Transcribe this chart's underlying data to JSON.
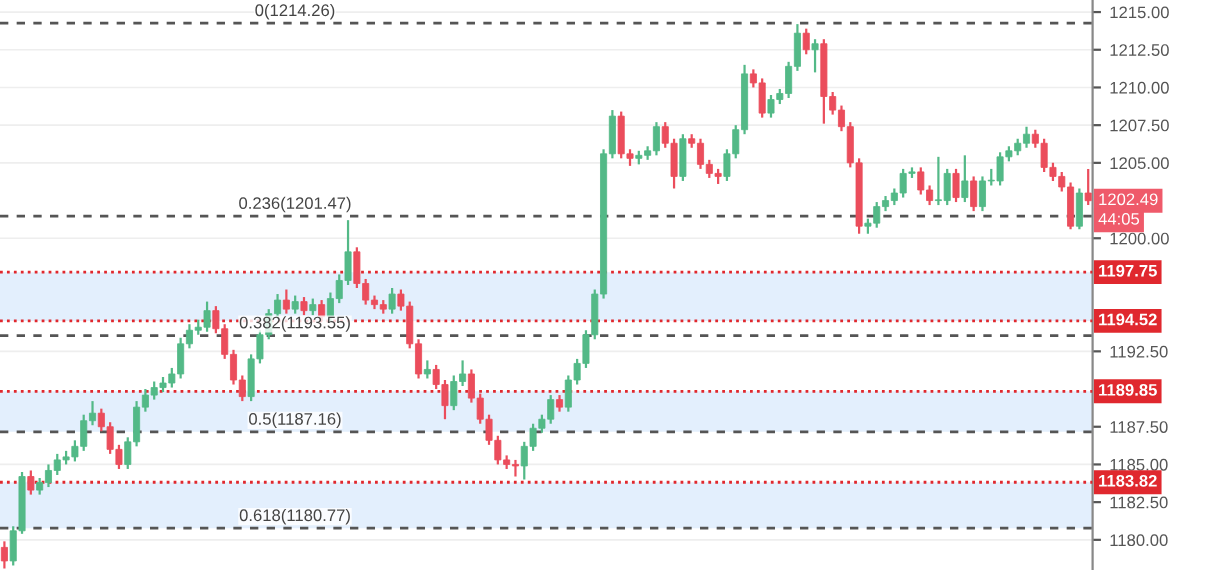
{
  "chart_data": {
    "type": "candlestick",
    "categories": [
      null,
      null,
      null,
      null,
      null,
      null,
      null,
      null,
      null,
      null,
      null,
      null,
      null,
      null,
      null,
      null,
      null,
      null,
      null,
      null,
      null,
      null,
      null,
      null,
      null,
      null,
      null,
      null,
      null,
      null,
      null,
      null,
      null,
      null,
      null,
      null,
      null,
      null,
      null,
      null,
      null,
      null,
      null,
      null,
      null,
      null,
      null,
      null,
      null,
      null,
      null,
      null,
      null,
      null,
      null,
      null,
      null,
      null,
      null,
      null,
      null,
      null,
      null,
      null,
      null,
      null,
      null,
      null,
      null,
      null,
      null,
      null,
      null,
      null,
      null,
      null,
      null,
      null,
      null,
      null,
      null,
      null,
      null,
      null,
      null,
      null,
      null,
      null,
      null,
      null,
      null,
      null,
      null,
      null,
      null,
      null,
      null,
      null,
      null,
      null,
      null,
      null,
      null,
      null,
      null,
      null,
      null,
      null,
      null,
      null,
      null,
      null,
      null,
      null,
      null,
      null,
      null,
      null,
      null,
      null,
      null,
      null,
      null,
      null
    ],
    "ohlc": [
      [
        1179.5,
        1179.9,
        1178.1,
        1178.6
      ],
      [
        1178.6,
        1180.9,
        1178.3,
        1180.6
      ],
      [
        1180.6,
        1184.5,
        1180.4,
        1184.2
      ],
      [
        1184.2,
        1184.6,
        1183.0,
        1183.3
      ],
      [
        1183.3,
        1184.1,
        1183.0,
        1183.8
      ],
      [
        1183.8,
        1185.0,
        1183.5,
        1184.6
      ],
      [
        1184.6,
        1185.7,
        1184.3,
        1185.3
      ],
      [
        1185.3,
        1185.9,
        1185.0,
        1185.5
      ],
      [
        1185.5,
        1186.6,
        1185.2,
        1186.2
      ],
      [
        1186.2,
        1188.3,
        1185.9,
        1187.9
      ],
      [
        1187.9,
        1189.2,
        1187.6,
        1188.4
      ],
      [
        1188.4,
        1188.7,
        1187.2,
        1187.5
      ],
      [
        1187.5,
        1187.8,
        1185.7,
        1186.0
      ],
      [
        1186.0,
        1186.3,
        1184.7,
        1185.0
      ],
      [
        1185.0,
        1186.8,
        1184.7,
        1186.5
      ],
      [
        1186.5,
        1189.2,
        1186.2,
        1188.8
      ],
      [
        1188.8,
        1190.0,
        1188.5,
        1189.6
      ],
      [
        1189.6,
        1190.5,
        1189.3,
        1190.1
      ],
      [
        1190.1,
        1190.8,
        1189.8,
        1190.4
      ],
      [
        1190.4,
        1191.4,
        1190.1,
        1191.0
      ],
      [
        1191.0,
        1193.4,
        1190.7,
        1193.0
      ],
      [
        1193.0,
        1194.3,
        1192.7,
        1193.9
      ],
      [
        1193.9,
        1194.6,
        1193.6,
        1194.1
      ],
      [
        1194.1,
        1195.8,
        1193.8,
        1195.2
      ],
      [
        1195.2,
        1195.5,
        1193.7,
        1194.0
      ],
      [
        1194.0,
        1194.3,
        1192.0,
        1192.3
      ],
      [
        1192.3,
        1192.6,
        1190.3,
        1190.6
      ],
      [
        1190.6,
        1190.9,
        1189.2,
        1189.5
      ],
      [
        1189.5,
        1192.3,
        1189.2,
        1192.0
      ],
      [
        1192.0,
        1193.9,
        1191.7,
        1193.6
      ],
      [
        1193.6,
        1195.3,
        1193.3,
        1195.0
      ],
      [
        1195.0,
        1196.3,
        1194.7,
        1195.9
      ],
      [
        1195.9,
        1196.6,
        1195.0,
        1195.3
      ],
      [
        1195.3,
        1196.2,
        1195.0,
        1195.8
      ],
      [
        1195.8,
        1196.1,
        1194.9,
        1195.2
      ],
      [
        1195.2,
        1196.0,
        1194.9,
        1195.6
      ],
      [
        1195.6,
        1195.9,
        1194.5,
        1194.8
      ],
      [
        1194.8,
        1196.4,
        1194.5,
        1196.0
      ],
      [
        1196.0,
        1197.6,
        1195.7,
        1197.2
      ],
      [
        1197.2,
        1201.2,
        1196.9,
        1199.1
      ],
      [
        1199.1,
        1199.4,
        1196.7,
        1197.0
      ],
      [
        1197.0,
        1197.3,
        1195.6,
        1195.9
      ],
      [
        1195.9,
        1196.2,
        1195.3,
        1195.6
      ],
      [
        1195.6,
        1195.9,
        1195.0,
        1195.3
      ],
      [
        1195.3,
        1196.7,
        1195.0,
        1196.3
      ],
      [
        1196.3,
        1196.6,
        1195.2,
        1195.5
      ],
      [
        1195.5,
        1195.8,
        1192.7,
        1193.0
      ],
      [
        1193.0,
        1193.3,
        1190.7,
        1191.0
      ],
      [
        1191.0,
        1191.9,
        1190.7,
        1191.3
      ],
      [
        1191.3,
        1191.6,
        1190.0,
        1190.3
      ],
      [
        1190.3,
        1190.6,
        1188.0,
        1188.9
      ],
      [
        1188.9,
        1190.9,
        1188.6,
        1190.5
      ],
      [
        1190.5,
        1191.9,
        1190.2,
        1191.0
      ],
      [
        1191.0,
        1191.3,
        1189.1,
        1189.4
      ],
      [
        1189.4,
        1189.7,
        1187.7,
        1188.0
      ],
      [
        1188.0,
        1188.3,
        1186.3,
        1186.6
      ],
      [
        1186.6,
        1186.9,
        1185.0,
        1185.3
      ],
      [
        1185.3,
        1185.6,
        1184.7,
        1185.0
      ],
      [
        1185.0,
        1185.3,
        1184.2,
        1184.9
      ],
      [
        1184.9,
        1186.5,
        1184.0,
        1186.2
      ],
      [
        1186.2,
        1187.7,
        1185.9,
        1187.4
      ],
      [
        1187.4,
        1188.3,
        1187.1,
        1188.0
      ],
      [
        1188.0,
        1189.6,
        1187.7,
        1189.3
      ],
      [
        1189.3,
        1189.6,
        1188.5,
        1188.8
      ],
      [
        1188.8,
        1190.9,
        1188.5,
        1190.6
      ],
      [
        1190.6,
        1192.0,
        1190.3,
        1191.7
      ],
      [
        1191.7,
        1193.9,
        1191.4,
        1193.6
      ],
      [
        1193.6,
        1196.6,
        1193.3,
        1196.3
      ],
      [
        1196.3,
        1205.9,
        1196.0,
        1205.6
      ],
      [
        1205.6,
        1208.5,
        1205.3,
        1208.1
      ],
      [
        1208.1,
        1208.4,
        1205.3,
        1205.6
      ],
      [
        1205.6,
        1205.9,
        1204.8,
        1205.3
      ],
      [
        1205.3,
        1205.8,
        1204.9,
        1205.5
      ],
      [
        1205.5,
        1206.1,
        1205.2,
        1205.8
      ],
      [
        1205.8,
        1207.7,
        1205.5,
        1207.4
      ],
      [
        1207.4,
        1207.7,
        1206.0,
        1206.3
      ],
      [
        1206.3,
        1206.6,
        1203.3,
        1204.1
      ],
      [
        1204.1,
        1206.9,
        1203.8,
        1206.6
      ],
      [
        1206.6,
        1206.9,
        1206.0,
        1206.3
      ],
      [
        1206.3,
        1206.6,
        1204.6,
        1204.9
      ],
      [
        1204.9,
        1205.2,
        1204.0,
        1204.3
      ],
      [
        1204.3,
        1204.6,
        1203.6,
        1204.1
      ],
      [
        1204.1,
        1205.9,
        1203.8,
        1205.6
      ],
      [
        1205.6,
        1207.5,
        1205.3,
        1207.2
      ],
      [
        1207.2,
        1211.5,
        1206.9,
        1210.9
      ],
      [
        1210.9,
        1211.2,
        1210.0,
        1210.3
      ],
      [
        1210.3,
        1210.6,
        1208.0,
        1208.3
      ],
      [
        1208.3,
        1209.5,
        1208.0,
        1209.2
      ],
      [
        1209.2,
        1209.9,
        1208.9,
        1209.6
      ],
      [
        1209.6,
        1211.7,
        1209.3,
        1211.4
      ],
      [
        1211.4,
        1214.2,
        1211.1,
        1213.6
      ],
      [
        1213.6,
        1213.9,
        1212.2,
        1212.5
      ],
      [
        1212.5,
        1213.2,
        1211.0,
        1212.9
      ],
      [
        1212.9,
        1213.2,
        1207.6,
        1209.4
      ],
      [
        1209.4,
        1209.7,
        1208.2,
        1208.5
      ],
      [
        1208.5,
        1208.8,
        1207.1,
        1207.4
      ],
      [
        1207.4,
        1207.7,
        1204.7,
        1205.0
      ],
      [
        1205.0,
        1205.3,
        1200.3,
        1200.8
      ],
      [
        1200.8,
        1201.3,
        1200.3,
        1201.0
      ],
      [
        1201.0,
        1202.4,
        1200.7,
        1202.1
      ],
      [
        1202.1,
        1202.8,
        1201.8,
        1202.5
      ],
      [
        1202.5,
        1203.3,
        1202.2,
        1203.0
      ],
      [
        1203.0,
        1204.6,
        1202.7,
        1204.3
      ],
      [
        1204.3,
        1204.7,
        1204.0,
        1204.4
      ],
      [
        1204.4,
        1204.7,
        1202.9,
        1203.2
      ],
      [
        1203.2,
        1203.5,
        1202.2,
        1202.5
      ],
      [
        1202.5,
        1205.4,
        1202.2,
        1202.5
      ],
      [
        1202.5,
        1204.6,
        1202.2,
        1204.3
      ],
      [
        1204.3,
        1204.6,
        1202.4,
        1202.7
      ],
      [
        1202.7,
        1205.5,
        1202.4,
        1203.8
      ],
      [
        1203.8,
        1204.1,
        1201.8,
        1202.1
      ],
      [
        1202.1,
        1204.1,
        1201.8,
        1203.8
      ],
      [
        1203.8,
        1204.6,
        1203.5,
        1203.8
      ],
      [
        1203.8,
        1205.7,
        1203.5,
        1205.4
      ],
      [
        1205.4,
        1206.1,
        1205.1,
        1205.8
      ],
      [
        1205.8,
        1206.6,
        1205.5,
        1206.3
      ],
      [
        1206.3,
        1207.4,
        1206.0,
        1206.9
      ],
      [
        1206.9,
        1207.2,
        1206.0,
        1206.3
      ],
      [
        1206.3,
        1206.6,
        1204.4,
        1204.7
      ],
      [
        1204.7,
        1205.0,
        1203.8,
        1204.1
      ],
      [
        1204.1,
        1204.4,
        1203.1,
        1203.4
      ],
      [
        1203.4,
        1203.7,
        1200.6,
        1200.8
      ],
      [
        1200.8,
        1203.3,
        1200.6,
        1203.0
      ],
      [
        1203.0,
        1204.6,
        1202.2,
        1202.49
      ]
    ],
    "colors": [
      "#eb4d5c",
      "#53b987",
      "#53b987",
      "#eb4d5c",
      "#53b987",
      "#53b987",
      "#53b987",
      "#53b987",
      "#53b987",
      "#53b987",
      "#53b987",
      "#eb4d5c",
      "#eb4d5c",
      "#eb4d5c",
      "#53b987",
      "#53b987",
      "#53b987",
      "#53b987",
      "#53b987",
      "#53b987",
      "#53b987",
      "#53b987",
      "#53b987",
      "#53b987",
      "#eb4d5c",
      "#eb4d5c",
      "#eb4d5c",
      "#eb4d5c",
      "#53b987",
      "#53b987",
      "#53b987",
      "#53b987",
      "#eb4d5c",
      "#53b987",
      "#eb4d5c",
      "#53b987",
      "#eb4d5c",
      "#53b987",
      "#53b987",
      "#53b987",
      "#eb4d5c",
      "#eb4d5c",
      "#eb4d5c",
      "#eb4d5c",
      "#53b987",
      "#eb4d5c",
      "#eb4d5c",
      "#eb4d5c",
      "#53b987",
      "#eb4d5c",
      "#eb4d5c",
      "#53b987",
      "#53b987",
      "#eb4d5c",
      "#eb4d5c",
      "#eb4d5c",
      "#eb4d5c",
      "#eb4d5c",
      "#eb4d5c",
      "#53b987",
      "#53b987",
      "#53b987",
      "#53b987",
      "#eb4d5c",
      "#53b987",
      "#53b987",
      "#53b987",
      "#53b987",
      "#53b987",
      "#53b987",
      "#eb4d5c",
      "#eb4d5c",
      "#53b987",
      "#53b987",
      "#53b987",
      "#eb4d5c",
      "#eb4d5c",
      "#53b987",
      "#eb4d5c",
      "#eb4d5c",
      "#eb4d5c",
      "#eb4d5c",
      "#53b987",
      "#53b987",
      "#53b987",
      "#eb4d5c",
      "#eb4d5c",
      "#53b987",
      "#53b987",
      "#53b987",
      "#53b987",
      "#eb4d5c",
      "#53b987",
      "#eb4d5c",
      "#eb4d5c",
      "#eb4d5c",
      "#eb4d5c",
      "#eb4d5c",
      "#53b987",
      "#53b987",
      "#53b987",
      "#53b987",
      "#53b987",
      "#53b987",
      "#eb4d5c",
      "#eb4d5c",
      "#53b987",
      "#53b987",
      "#eb4d5c",
      "#53b987",
      "#eb4d5c",
      "#53b987",
      "#53b987",
      "#53b987",
      "#53b987",
      "#53b987",
      "#53b987",
      "#eb4d5c",
      "#eb4d5c",
      "#eb4d5c",
      "#eb4d5c",
      "#eb4d5c",
      "#53b987",
      "#eb4d5c"
    ],
    "ylim": [
      1178.0,
      1215.8
    ],
    "yticks": [
      {
        "value": 1180,
        "label": "1180.00"
      },
      {
        "value": 1182.5,
        "label": "1182.50"
      },
      {
        "value": 1185,
        "label": "1185.00"
      },
      {
        "value": 1187.5,
        "label": "1187.50"
      },
      {
        "value": 1192.5,
        "label": "1192.50"
      },
      {
        "value": 1200,
        "label": "1200.00"
      },
      {
        "value": 1205,
        "label": "1205.00"
      },
      {
        "value": 1207.5,
        "label": "1207.50"
      },
      {
        "value": 1210,
        "label": "1210.00"
      },
      {
        "value": 1212.5,
        "label": "1212.50"
      },
      {
        "value": 1215,
        "label": "1215.00"
      }
    ],
    "grid": "y",
    "bands": [
      {
        "axis": "y",
        "from": 1194.52,
        "to": 1197.75,
        "color": "#e3effd"
      },
      {
        "axis": "y",
        "from": 1187.16,
        "to": 1189.85,
        "color": "#e3effd"
      },
      {
        "axis": "y",
        "from": 1180.77,
        "to": 1183.82,
        "color": "#e3effd"
      }
    ],
    "ref_lines": [
      {
        "axis": "y",
        "value": 1214.26,
        "label": "0(1214.26)",
        "color": "#555555",
        "line_style": "dashed"
      },
      {
        "axis": "y",
        "value": 1201.47,
        "label": "0.236(1201.47)",
        "color": "#555555",
        "line_style": "dashed"
      },
      {
        "axis": "y",
        "value": 1193.55,
        "label": "0.382(1193.55)",
        "color": "#555555",
        "line_style": "dashed"
      },
      {
        "axis": "y",
        "value": 1187.16,
        "label": "0.5(1187.16)",
        "color": "#555555",
        "line_style": "dashed"
      },
      {
        "axis": "y",
        "value": 1180.77,
        "label": "0.618(1180.77)",
        "color": "#555555",
        "line_style": "dashed"
      },
      {
        "axis": "y",
        "value": 1197.75,
        "label": "1197.75",
        "color": "#e0282e",
        "line_style": "dotted"
      },
      {
        "axis": "y",
        "value": 1194.52,
        "label": "1194.52",
        "color": "#e0282e",
        "line_style": "dotted"
      },
      {
        "axis": "y",
        "value": 1189.85,
        "label": "1189.85",
        "color": "#e0282e",
        "line_style": "dotted"
      },
      {
        "axis": "y",
        "value": 1183.82,
        "label": "1183.82",
        "color": "#e0282e",
        "line_style": "dotted"
      }
    ],
    "annotations": [
      "1202.49",
      "44:05"
    ]
  }
}
